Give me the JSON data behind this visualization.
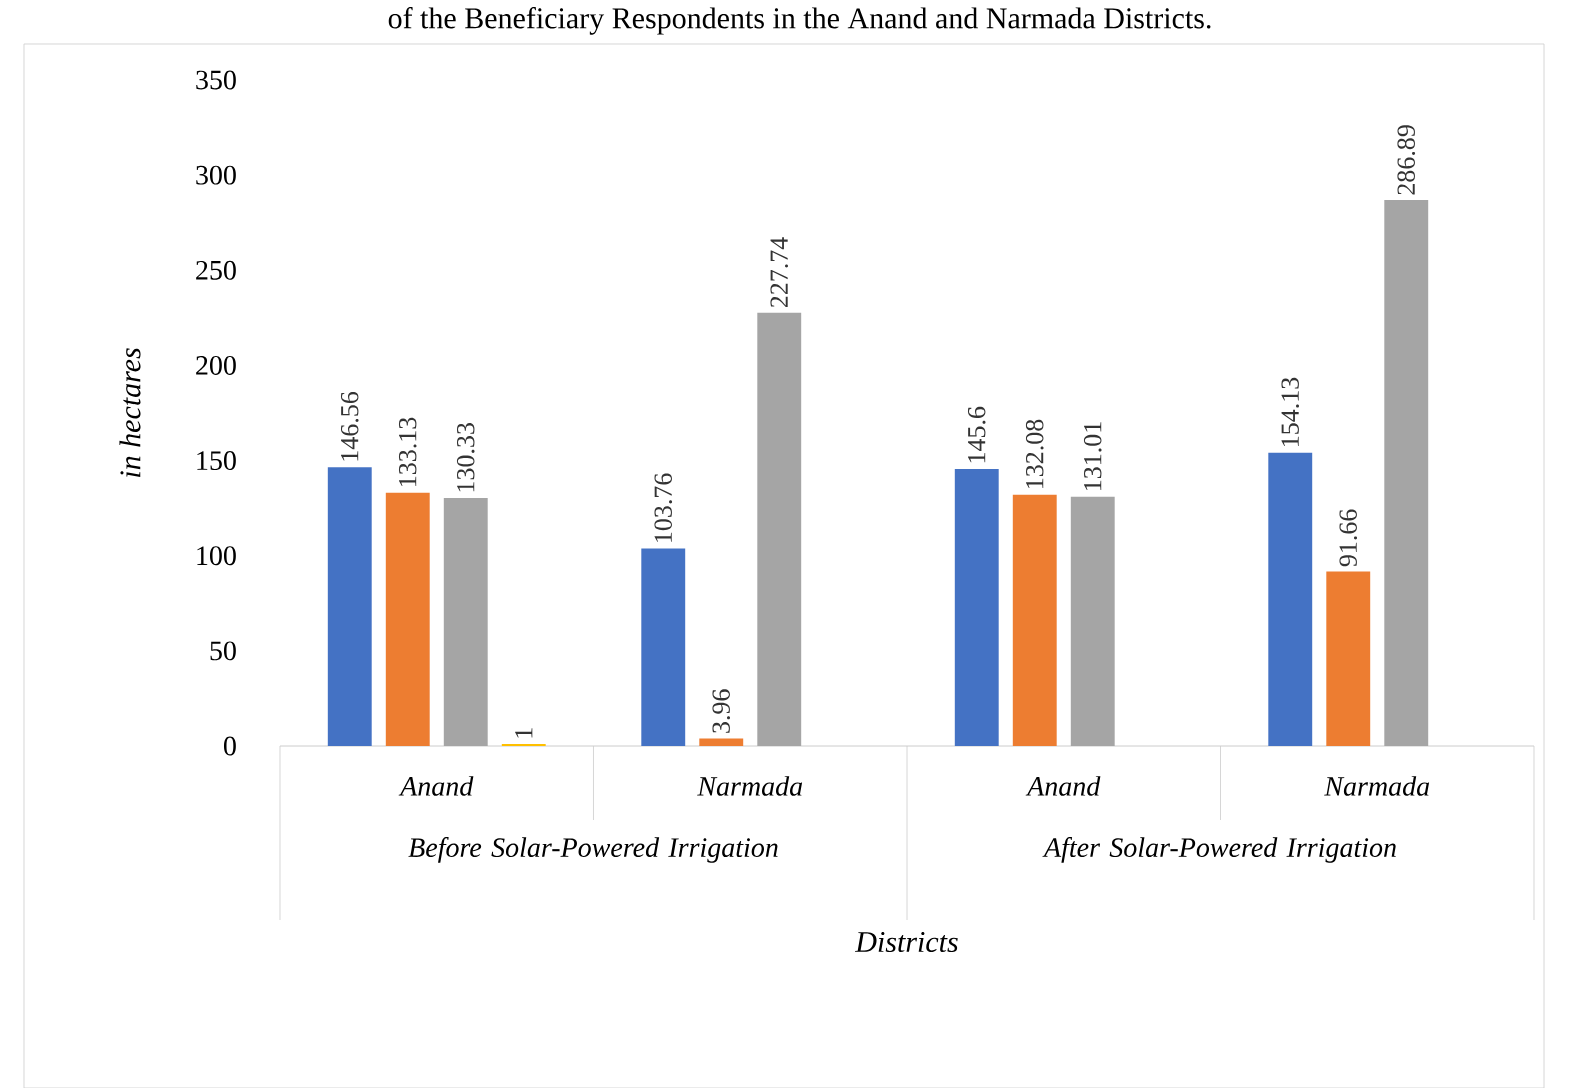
{
  "chart_data": {
    "type": "bar",
    "title": "of the Beneficiary Respondents in the Anand and Narmada Districts.",
    "categories": [
      "Anand",
      "Narmada",
      "Anand",
      "Narmada"
    ],
    "annotations": [
      "Before Solar-Powered Irrigation",
      "After Solar-Powered Irrigation"
    ],
    "xlabel": "Districts",
    "ylabel": "in hectares",
    "series": [
      {
        "color": "#4472c4",
        "values": [
          146.56,
          103.76,
          145.6,
          154.13
        ],
        "value_labels": [
          "146.56",
          "103.76",
          "145.6",
          "154.13"
        ]
      },
      {
        "color": "#ed7d31",
        "values": [
          133.13,
          3.96,
          132.08,
          91.66
        ],
        "value_labels": [
          "133.13",
          "3.96",
          "132.08",
          "91.66"
        ]
      },
      {
        "color": "#a5a5a5",
        "values": [
          130.33,
          227.74,
          131.01,
          286.89
        ],
        "value_labels": [
          "130.33",
          "227.74",
          "131.01",
          "286.89"
        ]
      },
      {
        "color": "#ffc000",
        "values": [
          1,
          null,
          null,
          null
        ],
        "value_labels": [
          "1",
          null,
          null,
          null
        ]
      }
    ],
    "ylim": [
      0,
      350
    ],
    "yticks": [
      0,
      50,
      100,
      150,
      200,
      250,
      300,
      350
    ]
  }
}
